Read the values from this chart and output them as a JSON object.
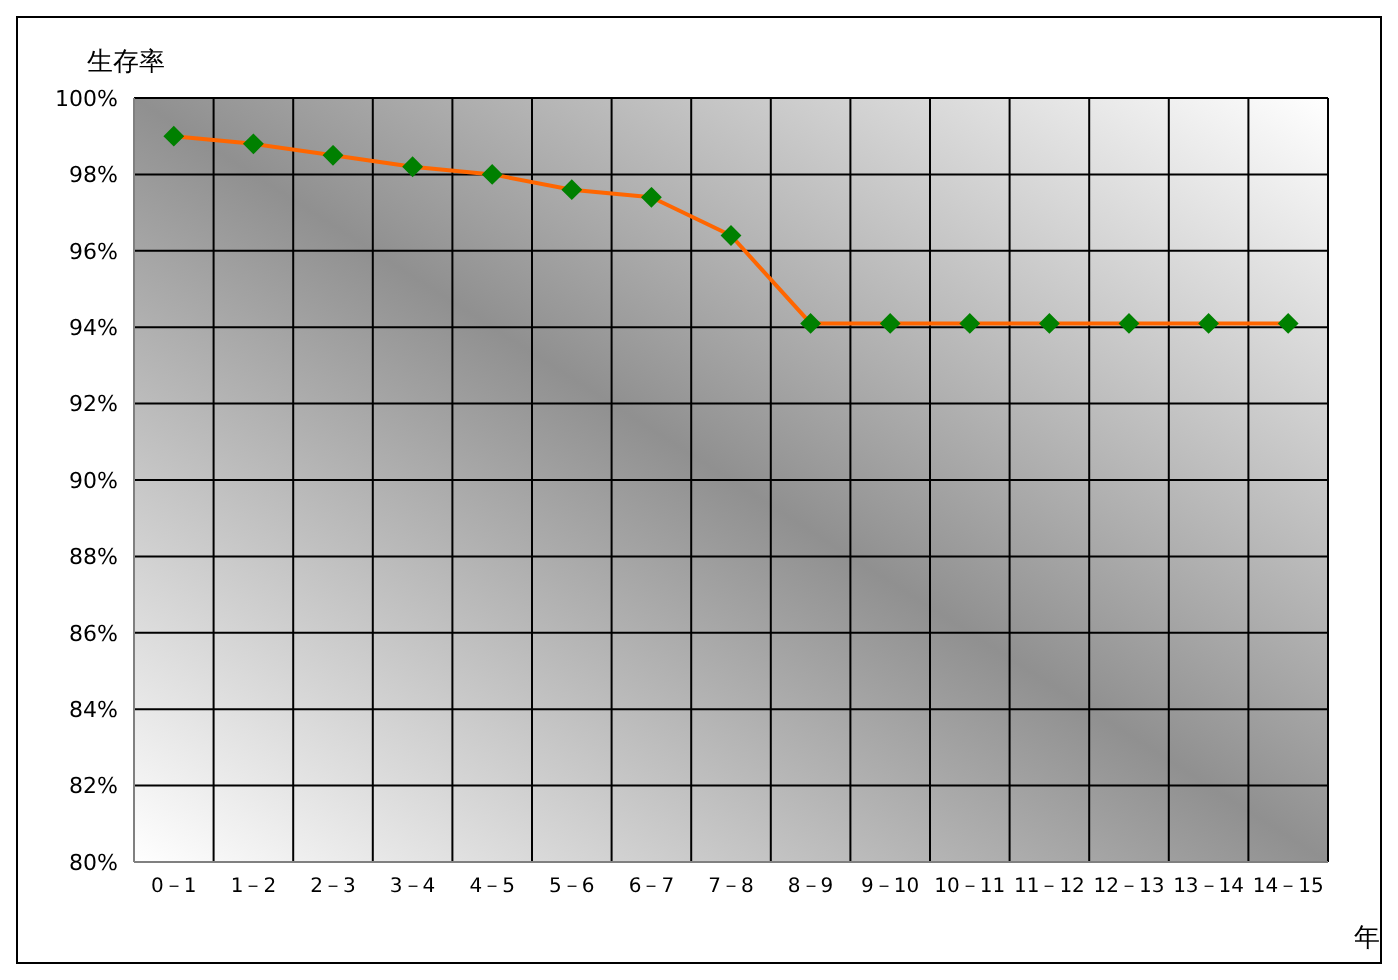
{
  "chart_data": {
    "type": "line",
    "ylabel": "生存率",
    "xlabel": "年",
    "categories": [
      "0－1",
      "1－2",
      "2－3",
      "3－4",
      "4－5",
      "5－6",
      "6－7",
      "7－8",
      "8－9",
      "9－10",
      "10－11",
      "11－12",
      "12－13",
      "13－14",
      "14－15"
    ],
    "series": [
      {
        "color": "#ff6600",
        "values": [
          99.0,
          98.8,
          98.5,
          98.2,
          98.0,
          97.6,
          97.4,
          96.4,
          94.1,
          94.1,
          94.1,
          94.1,
          94.1,
          94.1,
          94.1
        ]
      }
    ],
    "ylim": [
      80,
      100
    ],
    "yticks": [
      {
        "value": 80,
        "label": "80%"
      },
      {
        "value": 82,
        "label": "82%"
      },
      {
        "value": 84,
        "label": "84%"
      },
      {
        "value": 86,
        "label": "86%"
      },
      {
        "value": 88,
        "label": "88%"
      },
      {
        "value": 90,
        "label": "90%"
      },
      {
        "value": 92,
        "label": "92%"
      },
      {
        "value": 94,
        "label": "94%"
      },
      {
        "value": 96,
        "label": "96%"
      },
      {
        "value": 98,
        "label": "98%"
      },
      {
        "value": 100,
        "label": "100%"
      }
    ],
    "grid": true,
    "marker": "diamond"
  }
}
